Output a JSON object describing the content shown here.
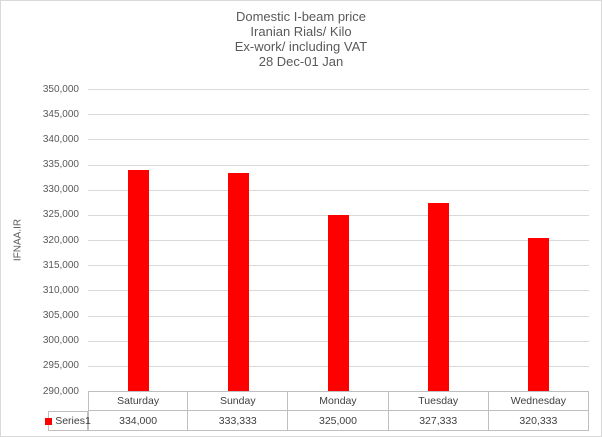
{
  "chart_data": {
    "type": "bar",
    "title_lines": [
      "Domestic I-beam price",
      "Iranian Rials/ Kilo",
      "Ex-work/ including VAT",
      "28 Dec-01 Jan"
    ],
    "ylabel": "IFNAA.IR",
    "xlabel": "",
    "categories": [
      "Saturday",
      "Sunday",
      "Monday",
      "Tuesday",
      "Wednesday"
    ],
    "series": [
      {
        "name": "Series1",
        "values": [
          334000,
          333333,
          325000,
          327333,
          320333
        ],
        "color": "#FF0000"
      }
    ],
    "value_labels": [
      "334,000",
      "333,333",
      "325,000",
      "327,333",
      "320,333"
    ],
    "ylim": [
      290000,
      350000
    ],
    "ytick_step": 5000,
    "ytick_labels_top_to_bottom": [
      "350,000",
      "345,000",
      "340,000",
      "335,000",
      "330,000",
      "325,000",
      "320,000",
      "315,000",
      "310,000",
      "305,000",
      "300,000",
      "295,000",
      "290,000"
    ],
    "grid": true,
    "legend_position": "data-table"
  },
  "style": {
    "bar_color": "#FF0000",
    "grid_color": "#D9D9D9",
    "table_border_color": "#BFBFBF",
    "text_color": "#595959",
    "table_text_color": "#404040",
    "background": "#FFFFFF"
  }
}
